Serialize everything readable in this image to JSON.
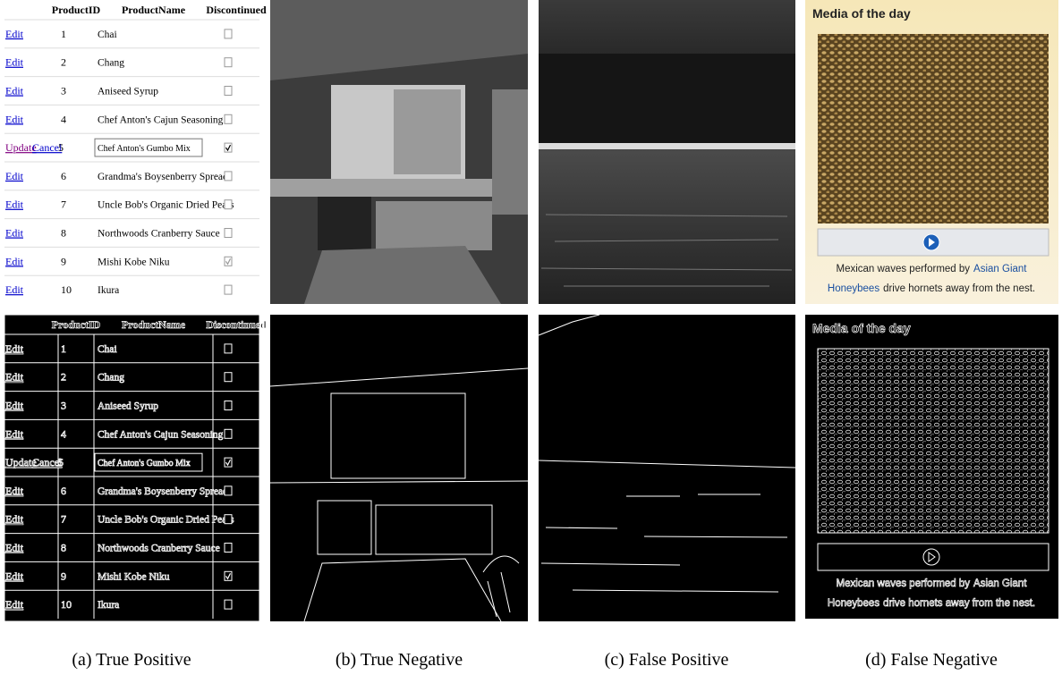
{
  "table": {
    "header": [
      "ProductID",
      "ProductName",
      "Discontinued"
    ],
    "rows": [
      {
        "actions": [
          "Edit"
        ],
        "id": 1,
        "name": "Chai",
        "discontinued": false
      },
      {
        "actions": [
          "Edit"
        ],
        "id": 2,
        "name": "Chang",
        "discontinued": false
      },
      {
        "actions": [
          "Edit"
        ],
        "id": 3,
        "name": "Aniseed Syrup",
        "discontinued": false
      },
      {
        "actions": [
          "Edit"
        ],
        "id": 4,
        "name": "Chef Anton's Cajun Seasoning",
        "discontinued": false
      },
      {
        "actions": [
          "Update",
          "Cancel"
        ],
        "id": 5,
        "name": "Chef Anton's Gumbo Mix",
        "discontinued": true,
        "editing": true
      },
      {
        "actions": [
          "Edit"
        ],
        "id": 6,
        "name": "Grandma's Boysenberry Spread",
        "discontinued": false
      },
      {
        "actions": [
          "Edit"
        ],
        "id": 7,
        "name": "Uncle Bob's Organic Dried Pears",
        "discontinued": false
      },
      {
        "actions": [
          "Edit"
        ],
        "id": 8,
        "name": "Northwoods Cranberry Sauce",
        "discontinued": false
      },
      {
        "actions": [
          "Edit"
        ],
        "id": 9,
        "name": "Mishi Kobe Niku",
        "discontinued": true
      },
      {
        "actions": [
          "Edit"
        ],
        "id": 10,
        "name": "Ikura",
        "discontinued": false
      }
    ]
  },
  "media": {
    "title": "Media of the day",
    "caption": [
      {
        "text": "Mexican waves performed by",
        "link": false
      },
      {
        "text": "Asian Giant",
        "link": true
      },
      {
        "text": "Honeybees",
        "link": true
      },
      {
        "text": "drive hornets away from the nest.",
        "link": false
      }
    ]
  },
  "captions": [
    "(a) True Positive",
    "(b) True Negative",
    "(c) False Positive",
    "(d) False Negative"
  ]
}
